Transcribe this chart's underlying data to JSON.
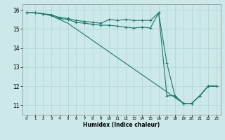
{
  "title": "",
  "xlabel": "Humidex (Indice chaleur)",
  "ylabel": "",
  "bg_color": "#cce8e8",
  "grid_color": "#b0d4d4",
  "line_color": "#1a7a6e",
  "xlim": [
    -0.5,
    23.5
  ],
  "ylim": [
    10.5,
    16.3
  ],
  "yticks": [
    11,
    12,
    13,
    14,
    15,
    16
  ],
  "xticks": [
    0,
    1,
    2,
    3,
    4,
    5,
    6,
    7,
    8,
    9,
    10,
    11,
    12,
    13,
    14,
    15,
    16,
    17,
    18,
    19,
    20,
    21,
    22,
    23
  ],
  "series1_x": [
    0,
    1,
    2,
    3,
    4,
    5,
    6,
    7,
    8,
    9,
    10,
    11,
    12,
    13,
    14,
    15,
    16,
    17,
    18,
    19,
    20,
    21,
    22,
    23
  ],
  "series1_y": [
    15.85,
    15.85,
    15.8,
    15.75,
    15.6,
    15.55,
    15.45,
    15.4,
    15.35,
    15.3,
    15.5,
    15.45,
    15.5,
    15.45,
    15.45,
    15.45,
    15.85,
    11.5,
    11.5,
    11.1,
    11.1,
    11.5,
    12.0,
    12.0
  ],
  "series2_x": [
    0,
    1,
    2,
    3,
    4,
    5,
    6,
    7,
    8,
    9,
    10,
    11,
    12,
    13,
    14,
    15,
    16,
    17,
    18,
    19,
    20,
    21,
    22,
    23
  ],
  "series2_y": [
    15.85,
    15.85,
    15.8,
    15.7,
    15.55,
    15.5,
    15.35,
    15.3,
    15.25,
    15.2,
    15.2,
    15.15,
    15.1,
    15.05,
    15.1,
    15.05,
    15.85,
    13.2,
    11.45,
    11.1,
    11.1,
    11.5,
    12.0,
    12.0
  ],
  "series3_x": [
    0,
    1,
    2,
    3,
    4,
    5,
    6,
    7,
    8,
    9,
    10,
    11,
    12,
    13,
    14,
    15,
    16,
    17,
    18,
    19,
    20,
    21,
    22,
    23
  ],
  "series3_y": [
    15.85,
    15.85,
    15.8,
    15.7,
    15.5,
    15.3,
    15.0,
    14.7,
    14.4,
    14.1,
    13.8,
    13.5,
    13.2,
    12.9,
    12.6,
    12.3,
    12.0,
    11.7,
    11.4,
    11.1,
    11.1,
    11.5,
    12.0,
    12.0
  ],
  "marker_style": "+",
  "marker_size": 3,
  "linewidth": 0.8
}
